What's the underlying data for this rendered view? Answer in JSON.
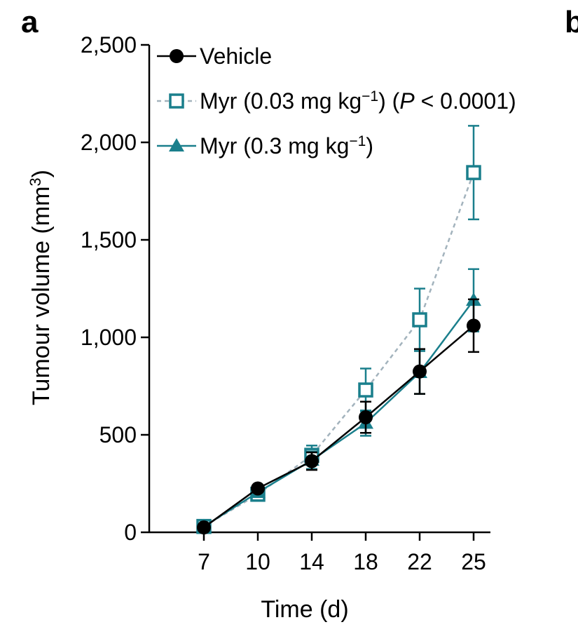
{
  "panel_label": "a",
  "next_panel_label": "b",
  "chart_data": {
    "type": "line",
    "title": "",
    "xlabel": "Time (d)",
    "ylabel": "Tumour volume (mm",
    "ylabel_sup": "3",
    "ylabel_close": ")",
    "x": [
      7,
      10,
      14,
      18,
      22,
      25
    ],
    "x_tick_labels": [
      "7",
      "10",
      "14",
      "18",
      "22",
      "25"
    ],
    "ylim": [
      0,
      2500
    ],
    "y_ticks": [
      0,
      500,
      1000,
      1500,
      2000,
      2500
    ],
    "y_tick_labels": [
      "0",
      "500",
      "1,000",
      "1,500",
      "2,000",
      "2,500"
    ],
    "legend_position": "top-left",
    "grid": false,
    "series": [
      {
        "name": "Vehicle",
        "legend_parts": [
          "Vehicle"
        ],
        "color": "#000000",
        "marker": "filled-circle",
        "line": "solid",
        "values": [
          25,
          225,
          365,
          590,
          825,
          1060
        ],
        "error": [
          0,
          0,
          45,
          80,
          115,
          135
        ]
      },
      {
        "name": "Myr (0.03 mg kg−1) (P < 0.0001)",
        "legend_parts": [
          "Myr (0.03 mg kg",
          "−1",
          ") (",
          "P",
          " < 0.0001)"
        ],
        "color": "#1a7f8c",
        "line_color": "#a3b3bd",
        "marker": "open-square",
        "line": "dashed",
        "values": [
          30,
          195,
          395,
          730,
          1090,
          1845
        ],
        "error": [
          0,
          0,
          50,
          110,
          160,
          240
        ]
      },
      {
        "name": "Myr (0.3 mg kg−1)",
        "legend_parts": [
          "Myr (0.3 mg kg",
          "−1",
          ")"
        ],
        "color": "#1a7f8c",
        "marker": "filled-triangle",
        "line": "solid",
        "values": [
          30,
          205,
          370,
          560,
          820,
          1190
        ],
        "error": [
          0,
          0,
          45,
          65,
          110,
          160
        ]
      }
    ]
  }
}
